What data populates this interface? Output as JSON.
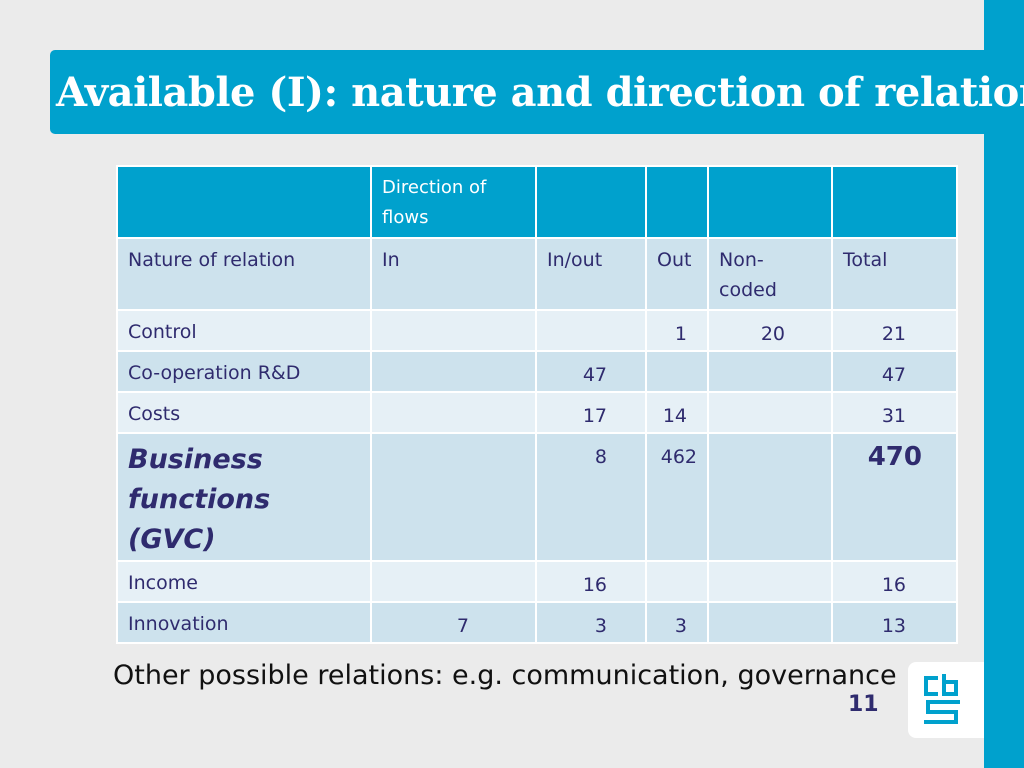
{
  "slide": {
    "title": "Available (I): nature and direction of relation",
    "page_number": "11",
    "note": "Other possible relations: e.g. communication, governance",
    "logo": {
      "icon": "cbs-logo-icon",
      "color": "#00a1cd"
    }
  },
  "table": {
    "header_row": [
      "",
      "Direction of flows",
      "",
      "",
      "",
      ""
    ],
    "column_headers": [
      "Nature of relation",
      "In",
      "In/out",
      "Out",
      "Non-coded",
      "Total"
    ],
    "rows": [
      {
        "label": "Control",
        "in": "",
        "inout": "",
        "out": "1",
        "noncoded": "20",
        "total": "21"
      },
      {
        "label": "Co-operation R&D",
        "in": "",
        "inout": "47",
        "out": "",
        "noncoded": "",
        "total": "47"
      },
      {
        "label": "Costs",
        "in": "",
        "inout": "17",
        "out": "14",
        "noncoded": "",
        "total": "31"
      },
      {
        "label": "Business functions (GVC)",
        "in": "",
        "inout": "8",
        "out": "462",
        "noncoded": "",
        "total": "470"
      },
      {
        "label": "Income",
        "in": "",
        "inout": "16",
        "out": "",
        "noncoded": "",
        "total": "16"
      },
      {
        "label": "Innovation",
        "in": "7",
        "inout": "3",
        "out": "3",
        "noncoded": "",
        "total": "13"
      }
    ]
  },
  "colors": {
    "accent": "#00a1cd",
    "table_dark_row": "#cde2ed",
    "table_light_row": "#e6f0f6",
    "text_navy": "#2f2b6e"
  }
}
